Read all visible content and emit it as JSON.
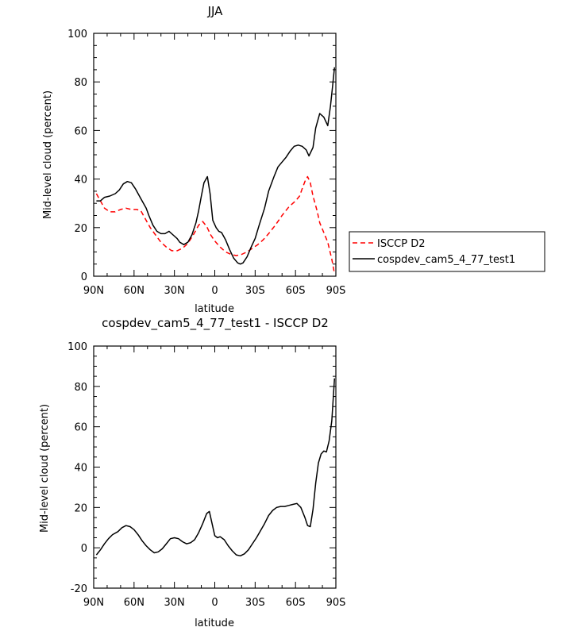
{
  "chart_data": [
    {
      "type": "line",
      "title": "JJA",
      "xlabel": "latitude",
      "ylabel": "Mid-level cloud (percent)",
      "xlim": [
        90,
        -90
      ],
      "ylim": [
        0,
        100
      ],
      "xticks": [
        {
          "value": 90,
          "label": "90N"
        },
        {
          "value": 60,
          "label": "60N"
        },
        {
          "value": 30,
          "label": "30N"
        },
        {
          "value": 0,
          "label": "0"
        },
        {
          "value": -30,
          "label": "30S"
        },
        {
          "value": -60,
          "label": "60S"
        },
        {
          "value": -90,
          "label": "90S"
        }
      ],
      "yticks": [
        0,
        20,
        40,
        60,
        80,
        100
      ],
      "legend": "right",
      "series": [
        {
          "name": "ISCCP D2",
          "color": "#ff0000",
          "dash": "dashed",
          "points": [
            [
              88,
              34
            ],
            [
              85,
              31
            ],
            [
              82,
              28
            ],
            [
              78,
              26.5
            ],
            [
              74,
              26.5
            ],
            [
              70,
              27.5
            ],
            [
              66,
              28
            ],
            [
              62,
              27.5
            ],
            [
              58,
              27.5
            ],
            [
              55,
              27
            ],
            [
              52,
              24
            ],
            [
              48,
              20
            ],
            [
              44,
              17
            ],
            [
              40,
              14
            ],
            [
              36,
              12
            ],
            [
              32,
              10.5
            ],
            [
              28,
              10.5
            ],
            [
              24,
              11.5
            ],
            [
              20,
              13.5
            ],
            [
              16,
              17
            ],
            [
              12,
              21
            ],
            [
              9,
              22.5
            ],
            [
              6,
              20.5
            ],
            [
              3,
              17
            ],
            [
              0,
              14.5
            ],
            [
              -4,
              12
            ],
            [
              -8,
              10
            ],
            [
              -12,
              9
            ],
            [
              -16,
              8.5
            ],
            [
              -20,
              9
            ],
            [
              -24,
              10
            ],
            [
              -28,
              11.5
            ],
            [
              -32,
              13
            ],
            [
              -36,
              15
            ],
            [
              -40,
              17.5
            ],
            [
              -45,
              21
            ],
            [
              -50,
              25
            ],
            [
              -55,
              28.5
            ],
            [
              -60,
              31
            ],
            [
              -63,
              33
            ],
            [
              -65,
              36
            ],
            [
              -67,
              39
            ],
            [
              -69,
              41
            ],
            [
              -71,
              38.5
            ],
            [
              -73,
              33
            ],
            [
              -76,
              27
            ],
            [
              -78,
              22
            ],
            [
              -81,
              18
            ],
            [
              -84,
              14
            ],
            [
              -87,
              7
            ],
            [
              -89,
              1
            ]
          ]
        },
        {
          "name": "cospdev_cam5_4_77_test1",
          "color": "#000000",
          "dash": "solid",
          "points": [
            [
              88,
              31
            ],
            [
              85,
              31
            ],
            [
              82,
              32.5
            ],
            [
              78,
              33
            ],
            [
              74,
              34
            ],
            [
              71,
              35.5
            ],
            [
              68,
              38
            ],
            [
              65,
              39
            ],
            [
              62,
              38.5
            ],
            [
              59,
              36
            ],
            [
              55,
              32
            ],
            [
              51,
              28
            ],
            [
              49,
              25
            ],
            [
              46,
              21
            ],
            [
              43,
              18.5
            ],
            [
              40,
              17.5
            ],
            [
              37,
              17.5
            ],
            [
              34,
              18.5
            ],
            [
              31,
              17
            ],
            [
              28,
              15.5
            ],
            [
              26,
              14
            ],
            [
              23,
              13
            ],
            [
              20,
              14
            ],
            [
              17,
              17
            ],
            [
              14,
              22
            ],
            [
              12,
              27
            ],
            [
              10,
              33
            ],
            [
              8,
              38.5
            ],
            [
              5.5,
              41
            ],
            [
              3.5,
              34
            ],
            [
              1.5,
              23
            ],
            [
              -1,
              20
            ],
            [
              -3,
              18.5
            ],
            [
              -5,
              18
            ],
            [
              -8,
              15
            ],
            [
              -11,
              11
            ],
            [
              -14,
              7.5
            ],
            [
              -17,
              5.5
            ],
            [
              -19,
              5
            ],
            [
              -21,
              5.5
            ],
            [
              -24,
              8
            ],
            [
              -27,
              12
            ],
            [
              -30,
              15.5
            ],
            [
              -33,
              21
            ],
            [
              -37,
              28
            ],
            [
              -40,
              35
            ],
            [
              -44,
              41
            ],
            [
              -47,
              45
            ],
            [
              -50,
              47
            ],
            [
              -53,
              49
            ],
            [
              -56,
              51.5
            ],
            [
              -59,
              53.5
            ],
            [
              -62,
              54
            ],
            [
              -65,
              53.5
            ],
            [
              -68,
              52
            ],
            [
              -70,
              49.5
            ],
            [
              -73,
              53
            ],
            [
              -75,
              61
            ],
            [
              -77,
              65
            ],
            [
              -78,
              67
            ],
            [
              -81,
              65.5
            ],
            [
              -84,
              62
            ],
            [
              -86,
              70
            ],
            [
              -87.5,
              78
            ],
            [
              -89,
              86
            ]
          ]
        }
      ]
    },
    {
      "type": "line",
      "title": "cospdev_cam5_4_77_test1 - ISCCP D2",
      "xlabel": "latitude",
      "ylabel": "Mid-level cloud (percent)",
      "xlim": [
        90,
        -90
      ],
      "ylim": [
        -20,
        100
      ],
      "xticks": [
        {
          "value": 90,
          "label": "90N"
        },
        {
          "value": 60,
          "label": "60N"
        },
        {
          "value": 30,
          "label": "30N"
        },
        {
          "value": 0,
          "label": "0"
        },
        {
          "value": -30,
          "label": "30S"
        },
        {
          "value": -60,
          "label": "60S"
        },
        {
          "value": -90,
          "label": "90S"
        }
      ],
      "yticks": [
        -20,
        0,
        20,
        40,
        60,
        80,
        100
      ],
      "series": [
        {
          "color": "#000000",
          "dash": "solid",
          "points": [
            [
              88,
              -3.5
            ],
            [
              85,
              -1
            ],
            [
              82,
              2
            ],
            [
              79,
              4.5
            ],
            [
              76,
              6.5
            ],
            [
              72,
              8
            ],
            [
              69,
              10
            ],
            [
              66,
              11
            ],
            [
              63,
              10.5
            ],
            [
              60,
              9
            ],
            [
              57,
              6.5
            ],
            [
              54,
              3.5
            ],
            [
              51,
              1
            ],
            [
              48,
              -1
            ],
            [
              45,
              -2.5
            ],
            [
              42,
              -2
            ],
            [
              39,
              -0.5
            ],
            [
              36,
              2
            ],
            [
              33,
              4.5
            ],
            [
              30,
              5
            ],
            [
              27,
              4.5
            ],
            [
              24,
              3
            ],
            [
              21,
              2
            ],
            [
              18,
              2.5
            ],
            [
              15,
              4
            ],
            [
              12,
              7.5
            ],
            [
              9,
              12
            ],
            [
              6,
              17
            ],
            [
              4,
              18
            ],
            [
              2,
              12
            ],
            [
              0,
              6
            ],
            [
              -2,
              5
            ],
            [
              -4,
              5.5
            ],
            [
              -7,
              4
            ],
            [
              -10,
              1
            ],
            [
              -13,
              -1.5
            ],
            [
              -16,
              -3.5
            ],
            [
              -19,
              -4
            ],
            [
              -22,
              -3
            ],
            [
              -25,
              -1
            ],
            [
              -28,
              2
            ],
            [
              -31,
              5
            ],
            [
              -34,
              8.5
            ],
            [
              -37,
              12
            ],
            [
              -40,
              16
            ],
            [
              -43,
              18.5
            ],
            [
              -46,
              20
            ],
            [
              -49,
              20.5
            ],
            [
              -52,
              20.5
            ],
            [
              -55,
              21
            ],
            [
              -58,
              21.5
            ],
            [
              -61,
              22
            ],
            [
              -64,
              20
            ],
            [
              -67,
              15
            ],
            [
              -69,
              11
            ],
            [
              -71,
              10.5
            ],
            [
              -73,
              19
            ],
            [
              -75,
              32
            ],
            [
              -77,
              42
            ],
            [
              -79,
              46.5
            ],
            [
              -81,
              48
            ],
            [
              -83,
              47.5
            ],
            [
              -85,
              53
            ],
            [
              -87,
              63
            ],
            [
              -89,
              84
            ]
          ]
        }
      ]
    }
  ]
}
